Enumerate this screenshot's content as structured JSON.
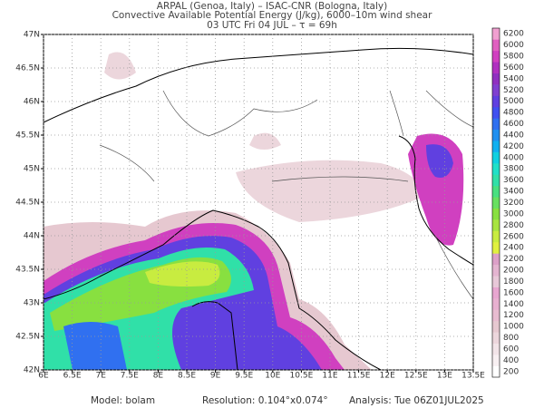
{
  "chart_data": {
    "type": "contour",
    "title": [
      "ARPAL (Genoa, Italy)  –  ISAC-CNR (Bologna, Italy)",
      "Convective Available Potential Energy (J/kg), 6000–10m wind shear",
      "03 UTC Fri 04 JUL  –  τ = 69h"
    ],
    "xlim": [
      6,
      13.5
    ],
    "ylim": [
      42,
      47
    ],
    "xticks": [
      {
        "value": 6,
        "label": "6E"
      },
      {
        "value": 6.5,
        "label": "6.5E"
      },
      {
        "value": 7,
        "label": "7E"
      },
      {
        "value": 7.5,
        "label": "7.5E"
      },
      {
        "value": 8,
        "label": "8E"
      },
      {
        "value": 8.5,
        "label": "8.5E"
      },
      {
        "value": 9,
        "label": "9E"
      },
      {
        "value": 9.5,
        "label": "9.5E"
      },
      {
        "value": 10,
        "label": "10E"
      },
      {
        "value": 10.5,
        "label": "10.5E"
      },
      {
        "value": 11,
        "label": "11E"
      },
      {
        "value": 11.5,
        "label": "11.5E"
      },
      {
        "value": 12,
        "label": "12E"
      },
      {
        "value": 12.5,
        "label": "12.5E"
      },
      {
        "value": 13,
        "label": "13E"
      },
      {
        "value": 13.5,
        "label": "13.5E"
      }
    ],
    "yticks": [
      {
        "value": 42,
        "label": "42N"
      },
      {
        "value": 42.5,
        "label": "42.5N"
      },
      {
        "value": 43,
        "label": "43N"
      },
      {
        "value": 43.5,
        "label": "43.5N"
      },
      {
        "value": 44,
        "label": "44N"
      },
      {
        "value": 44.5,
        "label": "44.5N"
      },
      {
        "value": 45,
        "label": "45N"
      },
      {
        "value": 45.5,
        "label": "45.5N"
      },
      {
        "value": 46,
        "label": "46N"
      },
      {
        "value": 46.5,
        "label": "46.5N"
      },
      {
        "value": 47,
        "label": "47N"
      }
    ],
    "grid": true,
    "colorbar": {
      "levels": [
        200,
        400,
        600,
        800,
        1000,
        1200,
        1400,
        1600,
        1800,
        2000,
        2200,
        2400,
        2600,
        2800,
        3000,
        3200,
        3400,
        3600,
        3800,
        4000,
        4200,
        4400,
        4600,
        4800,
        5000,
        5200,
        5400,
        5600,
        5800,
        6000,
        6200
      ],
      "colors": [
        "#ffffff",
        "#f8f0f2",
        "#f2e4e8",
        "#ecd6dc",
        "#e6c8d0",
        "#e8bcd0",
        "#e8b0d0",
        "#e8a6d0",
        "#e8c8d8",
        "#e4b4d0",
        "#dca0c8",
        "#e0f040",
        "#c8ec40",
        "#a8e440",
        "#88e040",
        "#68e060",
        "#48e080",
        "#30e0a8",
        "#20e0c8",
        "#10d0e0",
        "#10b0f0",
        "#2090f0",
        "#3070f0",
        "#4050f0",
        "#6040e0",
        "#8040d0",
        "#9030c0",
        "#b030c0",
        "#d040c0",
        "#e060c0",
        "#f0a0d0"
      ]
    },
    "footer": [
      "Model: bolam",
      "Resolution: 0.104°x0.074°",
      "Analysis: Tue 06Z01JUL2025"
    ]
  }
}
